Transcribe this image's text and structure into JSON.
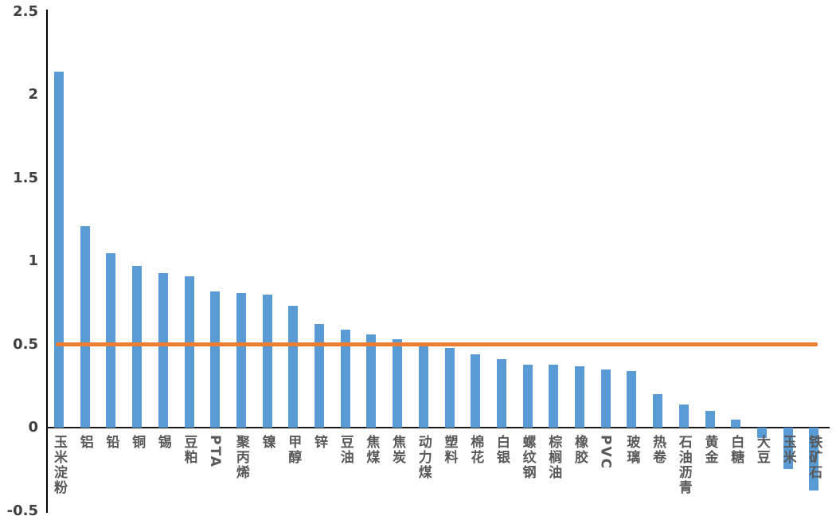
{
  "chart_data": {
    "type": "bar",
    "title": "",
    "xlabel": "",
    "ylabel": "",
    "categories": [
      "玉米淀粉",
      "铝",
      "铅",
      "铜",
      "锡",
      "豆粕",
      "PTA",
      "聚丙烯",
      "镍",
      "甲醇",
      "锌",
      "豆油",
      "焦煤",
      "焦炭",
      "动力煤",
      "塑料",
      "棉花",
      "白银",
      "螺纹钢",
      "棕榈油",
      "橡胶",
      "PVC",
      "玻璃",
      "热卷",
      "石油沥青",
      "黄金",
      "白糖",
      "大豆",
      "玉米",
      "铁矿石"
    ],
    "values": [
      2.14,
      1.21,
      1.05,
      0.97,
      0.93,
      0.91,
      0.82,
      0.81,
      0.8,
      0.73,
      0.62,
      0.59,
      0.56,
      0.53,
      0.49,
      0.48,
      0.44,
      0.41,
      0.38,
      0.38,
      0.37,
      0.35,
      0.34,
      0.2,
      0.14,
      0.1,
      0.05,
      -0.06,
      -0.25,
      -0.38
    ],
    "yticks": [
      "2.5",
      "2",
      "1.5",
      "1",
      "0.5",
      "0",
      "-0.5"
    ],
    "ytick_values": [
      2.5,
      2.0,
      1.5,
      1.0,
      0.5,
      0.0,
      -0.5
    ],
    "ylim": [
      -0.5,
      2.5
    ],
    "reference_line": {
      "value": 0.5
    },
    "grid": "off",
    "legend": "none",
    "colors": {
      "bar": "#5b9bd5",
      "reference_line": "#ed7d31",
      "tick_text": "#404040",
      "category_text": "#595959",
      "axis": "#000000",
      "background": "#ffffff"
    }
  }
}
